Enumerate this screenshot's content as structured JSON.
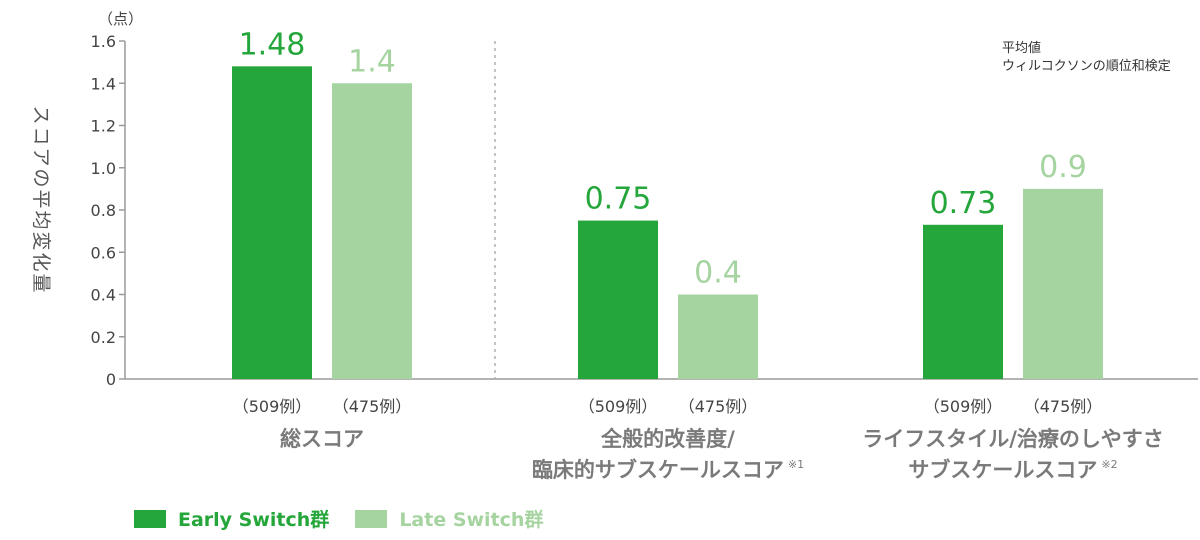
{
  "chart_data": {
    "type": "bar",
    "unit_label": "（点）",
    "ylabel": "スコアの平均変化量",
    "ylim": [
      0,
      1.6
    ],
    "yticks": [
      0,
      0.2,
      0.4,
      0.6,
      0.8,
      1.0,
      1.2,
      1.4,
      1.6
    ],
    "ytick_labels": [
      "0",
      "0.2",
      "0.4",
      "0.6",
      "0.8",
      "1.0",
      "1.2",
      "1.4",
      "1.6"
    ],
    "categories": [
      {
        "lines": [
          "総スコア"
        ],
        "note": ""
      },
      {
        "lines": [
          "全般的改善度/",
          "臨床的サブスケールスコア"
        ],
        "note": "※1"
      },
      {
        "lines": [
          "ライフスタイル/治療のしやすさ",
          "サブスケールスコア"
        ],
        "note": "※2"
      }
    ],
    "series": [
      {
        "name": "Early Switch群",
        "color": "#24a63a",
        "values": [
          1.48,
          0.75,
          0.73
        ],
        "value_labels": [
          "1.48",
          "0.75",
          "0.73"
        ],
        "n_labels": [
          "（509例）",
          "（509例）",
          "（509例）"
        ]
      },
      {
        "name": "Late Switch群",
        "color": "#a5d4a0",
        "values": [
          1.4,
          0.4,
          0.9
        ],
        "value_labels": [
          "1.4",
          "0.4",
          "0.9"
        ],
        "n_labels": [
          "（475例）",
          "（475例）",
          "（475例）"
        ]
      }
    ],
    "annotation": [
      "平均値",
      "ウィルコクソンの順位和検定"
    ],
    "grid": false,
    "legend_position": "bottom-left"
  }
}
